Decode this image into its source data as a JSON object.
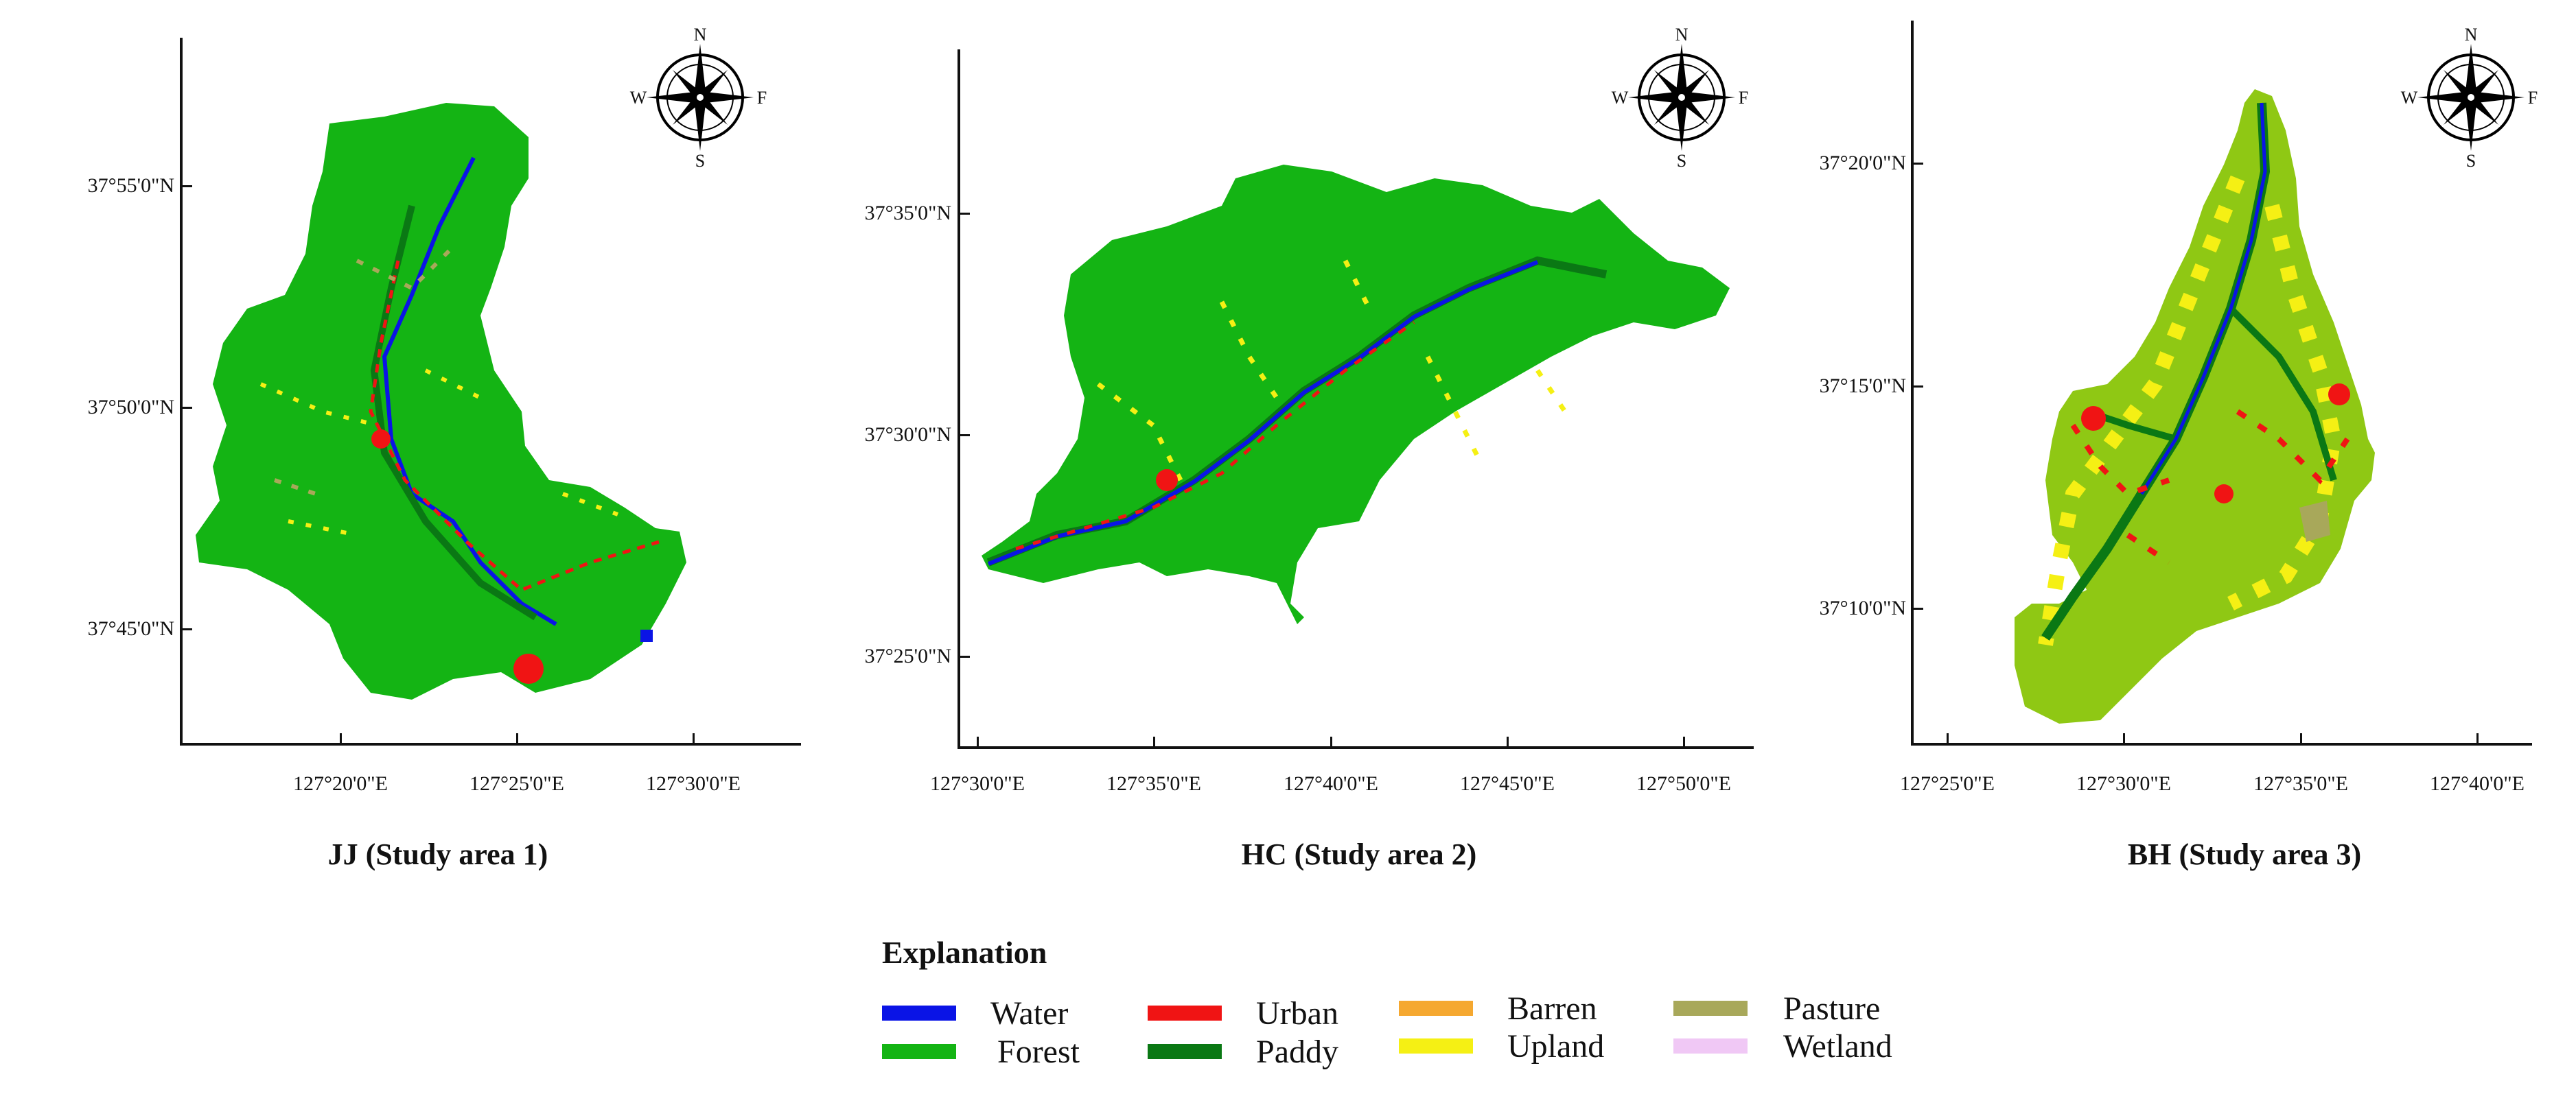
{
  "panels": [
    {
      "id": "jj",
      "caption": "JJ (Study area 1)",
      "y_ticks": [
        "37°55'0\"N",
        "37°50'0\"N",
        "37°45'0\"N"
      ],
      "x_ticks": [
        "127°20'0\"E",
        "127°25'0\"E",
        "127°30'0\"E"
      ],
      "compass": {
        "n": "N",
        "s": "S",
        "e": "F",
        "w": "W"
      }
    },
    {
      "id": "hc",
      "caption": "HC (Study area 2)",
      "y_ticks": [
        "37°35'0\"N",
        "37°30'0\"N",
        "37°25'0\"N"
      ],
      "x_ticks": [
        "127°30'0\"E",
        "127°35'0\"E",
        "127°40'0\"E",
        "127°45'0\"E",
        "127°50'0\"E"
      ],
      "compass": {
        "n": "N",
        "s": "S",
        "e": "F",
        "w": "W"
      }
    },
    {
      "id": "bh",
      "caption": "BH (Study area 3)",
      "y_ticks": [
        "37°20'0\"N",
        "37°15'0\"N",
        "37°10'0\"N"
      ],
      "x_ticks": [
        "127°25'0\"E",
        "127°30'0\"E",
        "127°35'0\"E",
        "127°40'0\"E"
      ],
      "compass": {
        "n": "N",
        "s": "S",
        "e": "F",
        "w": "W"
      }
    }
  ],
  "legend": {
    "title": "Explanation",
    "items": [
      {
        "label": "Water",
        "color": "#0a14e6"
      },
      {
        "label": "Forest",
        "color": "#14b414"
      },
      {
        "label": "Urban",
        "color": "#f01414"
      },
      {
        "label": "Paddy",
        "color": "#0a7814"
      },
      {
        "label": "Barren",
        "color": "#f5a830"
      },
      {
        "label": "Upland",
        "color": "#f5f014"
      },
      {
        "label": "Pasture",
        "color": "#a8a85a"
      },
      {
        "label": "Wetland",
        "color": "#f0c8f5"
      }
    ]
  }
}
